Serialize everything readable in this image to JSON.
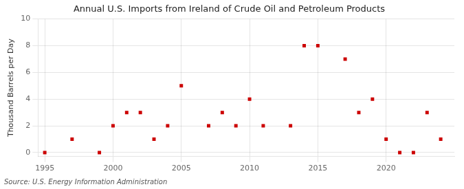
{
  "chart_data": {
    "type": "scatter",
    "title": "Annual U.S. Imports from Ireland of Crude Oil and Petroleum Products",
    "ylabel": "Thousand Barrels per Day",
    "source": "Source: U.S. Energy Information Administration",
    "x": [
      1995,
      1997,
      1999,
      2000,
      2001,
      2002,
      2003,
      2004,
      2005,
      2007,
      2008,
      2009,
      2010,
      2011,
      2013,
      2014,
      2015,
      2017,
      2018,
      2019,
      2020,
      2021,
      2022,
      2023,
      2024
    ],
    "values": [
      0,
      1,
      0,
      2,
      3,
      3,
      1,
      2,
      5,
      2,
      3,
      2,
      4,
      2,
      2,
      8,
      8,
      7,
      3,
      4,
      1,
      0,
      0,
      3,
      1
    ],
    "color": "#cc0000",
    "marker": "square",
    "xlim": [
      1994.5,
      2025
    ],
    "ylim": [
      -0.3,
      10
    ],
    "xticks": [
      1995,
      2000,
      2005,
      2010,
      2015,
      2020
    ],
    "yticks": [
      0,
      2,
      4,
      6,
      8,
      10
    ],
    "grid": true
  }
}
